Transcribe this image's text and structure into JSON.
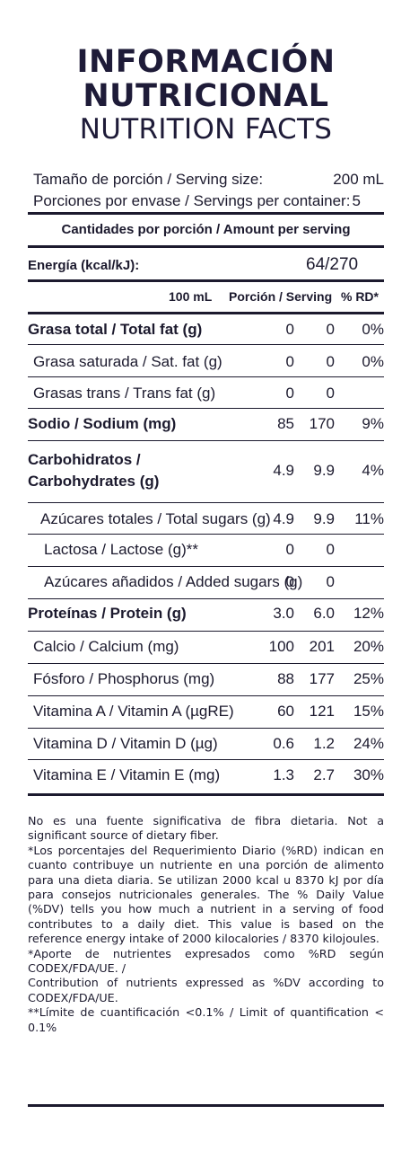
{
  "title": {
    "line1": "INFORMACIÓN",
    "line2": "NUTRICIONAL",
    "line3": "NUTRITION FACTS"
  },
  "serving": {
    "size_label": "Tamaño de porción / Serving size:",
    "size_value": "200 mL",
    "per_container_label": "Porciones por envase / Servings per container:",
    "per_container_value": "5"
  },
  "amount_header": "Cantidades por porción / Amount per serving",
  "energy": {
    "label": "Energía (kcal/kJ):",
    "value": "64/270"
  },
  "columns": {
    "c1": "100 mL",
    "c2": "Porción / Serving",
    "c3": "% RD*"
  },
  "rows": [
    {
      "label": "Grasa total / Total fat (g)",
      "c1": "0",
      "c2": "0",
      "c3": "0%",
      "bold": true
    },
    {
      "label": "Grasa saturada / Sat. fat (g)",
      "c1": "0",
      "c2": "0",
      "c3": "0%"
    },
    {
      "label": "Grasas trans / Trans fat (g)",
      "c1": "0",
      "c2": "0",
      "c3": ""
    },
    {
      "label": "Sodio / Sodium (mg)",
      "c1": "85",
      "c2": "170",
      "c3": "9%",
      "bold": true
    },
    {
      "label": "Carbohidratos /",
      "label2": "Carbohydrates (g)",
      "c1": "4.9",
      "c2": "9.9",
      "c3": "4%",
      "bold": true
    },
    {
      "label": "Azúcares totales / Total sugars (g)",
      "c1": "4.9",
      "c2": "9.9",
      "c3": "11%"
    },
    {
      "label": "Lactosa / Lactose (g)**",
      "c1": "0",
      "c2": "0",
      "c3": ""
    },
    {
      "label": "Azúcares añadidos / Added sugars (g)",
      "c1": "0",
      "c2": "0",
      "c3": ""
    },
    {
      "label": "Proteínas / Protein (g)",
      "c1": "3.0",
      "c2": "6.0",
      "c3": "12%",
      "bold": true
    },
    {
      "label": "Calcio / Calcium (mg)",
      "c1": "100",
      "c2": "201",
      "c3": "20%"
    },
    {
      "label": "Fósforo / Phosphorus (mg)",
      "c1": "88",
      "c2": "177",
      "c3": "25%"
    },
    {
      "label": "Vitamina A / Vitamin A (µgRE)",
      "c1": "60",
      "c2": "121",
      "c3": "15%"
    },
    {
      "label": "Vitamina D / Vitamin D (µg)",
      "c1": "0.6",
      "c2": "1.2",
      "c3": "24%"
    },
    {
      "label": "Vitamina E / Vitamin E (mg)",
      "c1": "1.3",
      "c2": "2.7",
      "c3": "30%"
    }
  ],
  "footnotes": [
    "No es una fuente significativa de fibra dietaria. Not a significant source of dietary fiber.",
    "*Los porcentajes del Requerimiento Diario (%RD) indican en cuanto contribuye un nutriente en una porción de alimento para una dieta diaria. Se utilizan 2000 kcal u 8370 kJ por día para consejos nutricionales generales. The % Daily Value (%DV) tells you how much a nutrient in a serving of food contributes to a daily diet. This value is based on the reference energy intake of 2000 kilocalories / 8370 kilojoules.",
    "*Aporte de nutrientes expresados como %RD según CODEX/FDA/UE. /",
    "Contribution of nutrients expressed as %DV according to CODEX/FDA/UE.",
    "**Límite de cuantificación <0.1% / Limit of quantification < 0.1%"
  ]
}
